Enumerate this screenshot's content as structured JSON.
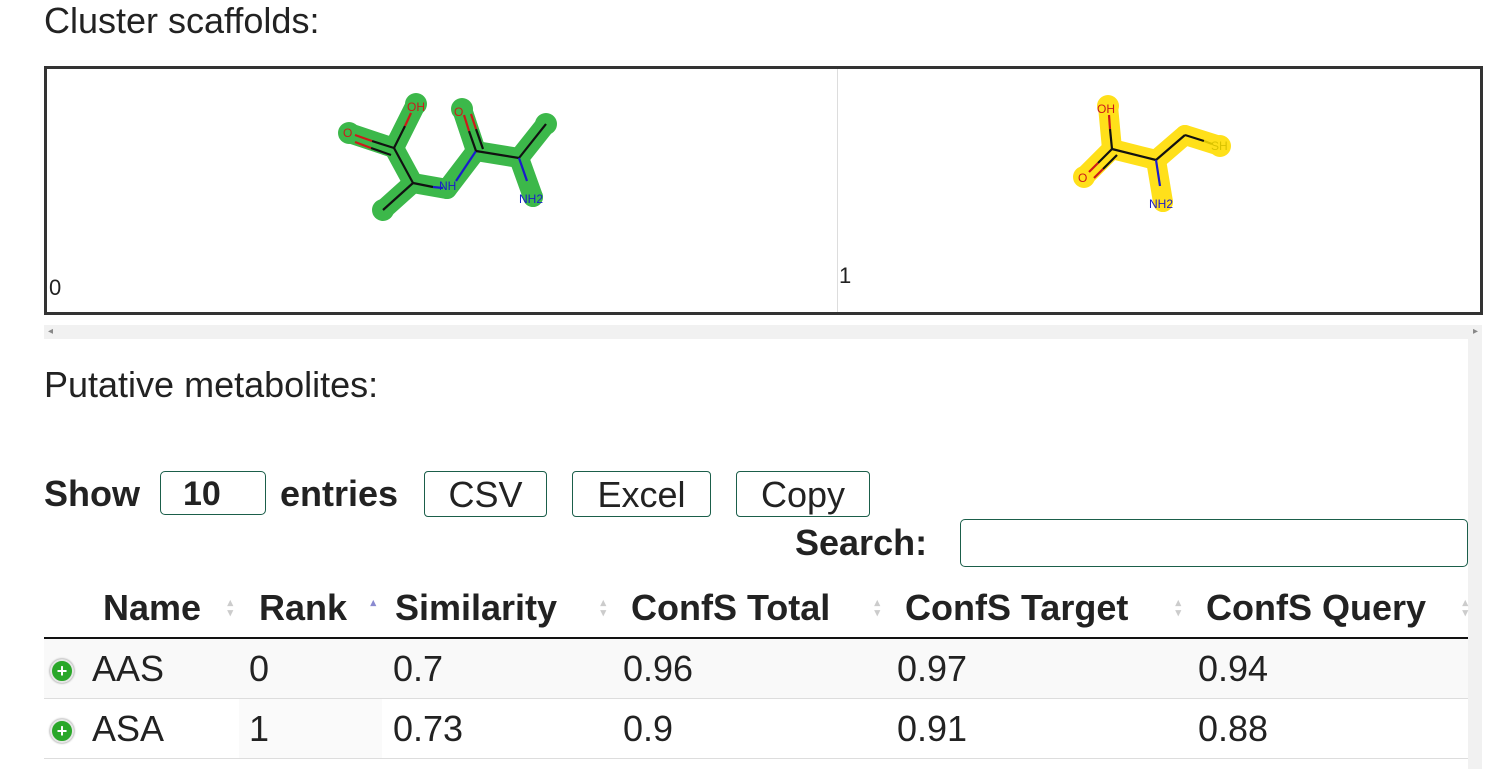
{
  "scaffolds": {
    "heading": "Cluster scaffolds:",
    "cells": [
      {
        "index": "0",
        "highlight": "#3cb84a",
        "atoms": [
          "OH",
          "O",
          "O",
          "NH",
          "NH2"
        ]
      },
      {
        "index": "1",
        "highlight": "#ffe01a",
        "atoms": [
          "OH",
          "O",
          "SH",
          "NH2"
        ]
      }
    ]
  },
  "metabolites": {
    "heading": "Putative metabolites:",
    "show_label": "Show",
    "entries_value": "10",
    "entries_label": "entries",
    "buttons": {
      "csv": "CSV",
      "excel": "Excel",
      "copy": "Copy"
    },
    "search_label": "Search:",
    "search_value": "",
    "columns": [
      "Name",
      "Rank",
      "Similarity",
      "ConfS Total",
      "ConfS Target",
      "ConfS Query"
    ],
    "sorted_column": "Rank",
    "rows": [
      {
        "name": "AAS",
        "rank": "0",
        "similarity": "0.7",
        "confs_total": "0.96",
        "confs_target": "0.97",
        "confs_query": "0.94"
      },
      {
        "name": "ASA",
        "rank": "1",
        "similarity": "0.73",
        "confs_total": "0.9",
        "confs_target": "0.91",
        "confs_query": "0.88"
      }
    ]
  },
  "colors": {
    "accent_border": "#1b5e4a",
    "expand_icon": "#2aa72a"
  }
}
